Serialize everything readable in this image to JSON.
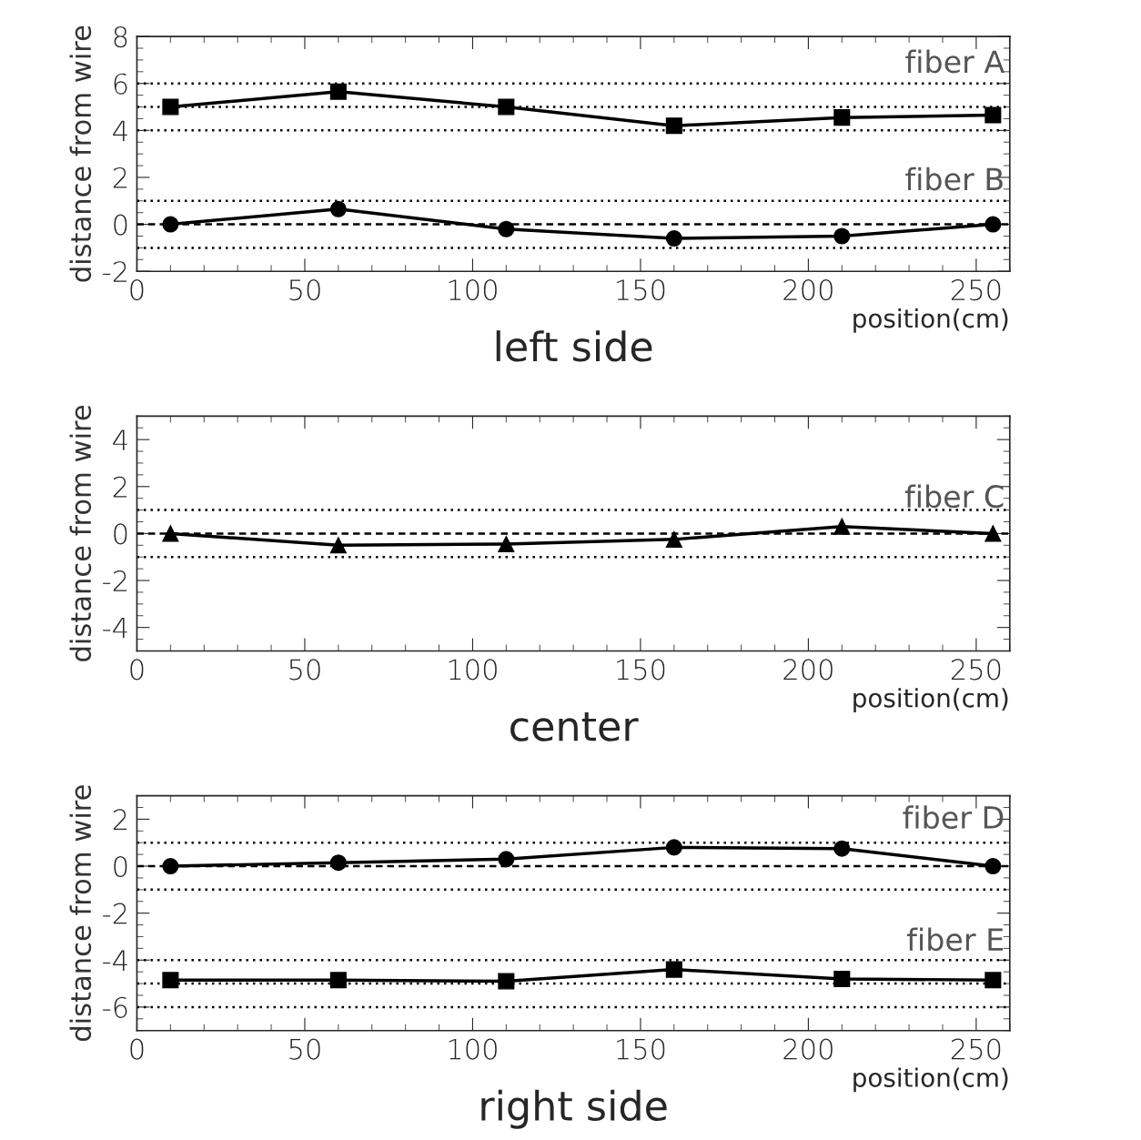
{
  "chart_data": [
    {
      "type": "line",
      "title": "left side",
      "xlabel": "position(cm)",
      "ylabel": "distance from wire",
      "x": [
        10,
        60,
        110,
        160,
        210,
        255
      ],
      "series": [
        {
          "name": "fiber A",
          "color": "#000000",
          "marker": "square",
          "values": [
            5.0,
            5.65,
            5.0,
            4.2,
            4.55,
            4.65
          ]
        },
        {
          "name": "fiber B",
          "color": "#000000",
          "marker": "circle",
          "values": [
            0,
            0.65,
            -0.2,
            -0.6,
            -0.5,
            0
          ]
        }
      ],
      "xlim": [
        0,
        260
      ],
      "xticks": [
        0,
        50,
        100,
        150,
        200,
        250
      ],
      "ylim": [
        -2,
        8
      ],
      "yticks": [
        -2,
        0,
        2,
        4,
        6,
        8
      ],
      "ref_lines": [
        {
          "axis": "y",
          "value": 6,
          "line_style": "dotted"
        },
        {
          "axis": "y",
          "value": 5,
          "line_style": "dotted"
        },
        {
          "axis": "y",
          "value": 4,
          "line_style": "dotted"
        },
        {
          "axis": "y",
          "value": 1,
          "line_style": "dotted"
        },
        {
          "axis": "y",
          "value": 0,
          "line_style": "dashed"
        },
        {
          "axis": "y",
          "value": -1,
          "line_style": "dotted"
        }
      ]
    },
    {
      "type": "line",
      "title": "center",
      "xlabel": "position(cm)",
      "ylabel": "distance from wire",
      "x": [
        10,
        60,
        110,
        160,
        210,
        255
      ],
      "series": [
        {
          "name": "fiber C",
          "color": "#000000",
          "marker": "triangle",
          "values": [
            0,
            -0.5,
            -0.45,
            -0.25,
            0.3,
            0
          ]
        }
      ],
      "xlim": [
        0,
        260
      ],
      "xticks": [
        0,
        50,
        100,
        150,
        200,
        250
      ],
      "ylim": [
        -5,
        5
      ],
      "yticks": [
        -4,
        -2,
        0,
        2,
        4
      ],
      "ref_lines": [
        {
          "axis": "y",
          "value": 1,
          "line_style": "dotted"
        },
        {
          "axis": "y",
          "value": 0,
          "line_style": "dashed"
        },
        {
          "axis": "y",
          "value": -1,
          "line_style": "dotted"
        }
      ]
    },
    {
      "type": "line",
      "title": "right side",
      "xlabel": "position(cm)",
      "ylabel": "distance from wire",
      "x": [
        10,
        60,
        110,
        160,
        210,
        255
      ],
      "series": [
        {
          "name": "fiber D",
          "color": "#000000",
          "marker": "circle",
          "values": [
            0,
            0.15,
            0.3,
            0.8,
            0.75,
            0
          ]
        },
        {
          "name": "fiber E",
          "color": "#000000",
          "marker": "square",
          "values": [
            -4.85,
            -4.85,
            -4.9,
            -4.4,
            -4.8,
            -4.85
          ]
        }
      ],
      "xlim": [
        0,
        260
      ],
      "xticks": [
        0,
        50,
        100,
        150,
        200,
        250
      ],
      "ylim": [
        -7,
        3
      ],
      "yticks": [
        -6,
        -4,
        -2,
        0,
        2
      ],
      "ref_lines": [
        {
          "axis": "y",
          "value": 1,
          "line_style": "dotted"
        },
        {
          "axis": "y",
          "value": 0,
          "line_style": "dashed"
        },
        {
          "axis": "y",
          "value": -1,
          "line_style": "dotted"
        },
        {
          "axis": "y",
          "value": -4,
          "line_style": "dotted"
        },
        {
          "axis": "y",
          "value": -5,
          "line_style": "dotted"
        },
        {
          "axis": "y",
          "value": -6,
          "line_style": "dotted"
        }
      ]
    }
  ]
}
